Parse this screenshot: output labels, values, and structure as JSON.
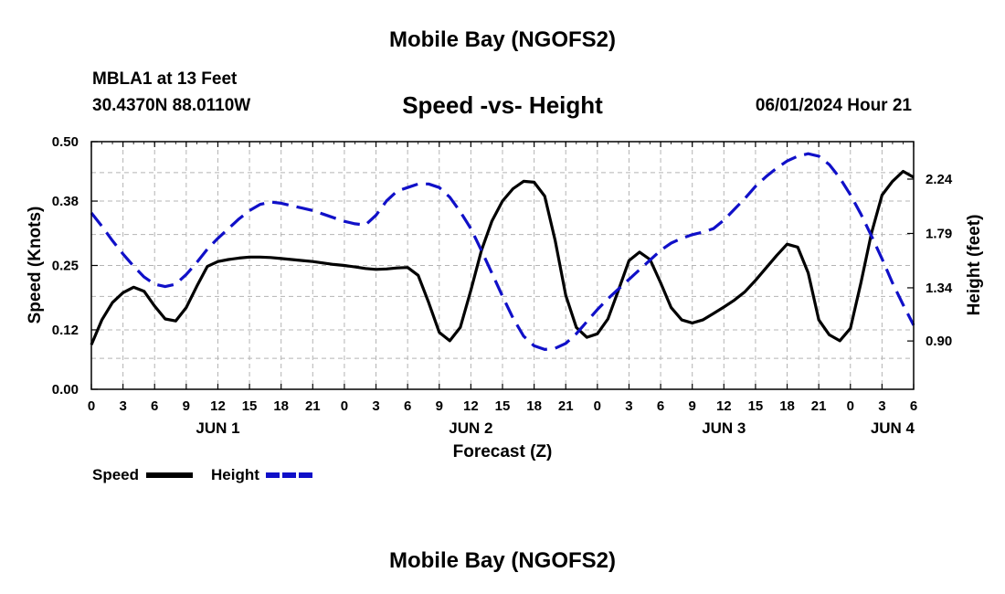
{
  "header": {
    "title": "Mobile Bay (NGOFS2)",
    "station": "MBLA1 at 13 Feet",
    "coords": "30.4370N  88.0110W",
    "subtitle": "Speed -vs- Height",
    "datestamp": "06/01/2024 Hour 21"
  },
  "footer": {
    "title": "Mobile Bay (NGOFS2)"
  },
  "chart_data": {
    "type": "line",
    "xlabel": "Forecast (Z)",
    "ylabel": "Speed (Knots)",
    "y2label": "Height (feet)",
    "xlim": [
      0,
      78
    ],
    "ylim": [
      0,
      0.5
    ],
    "y2lim": [
      0.5,
      2.55
    ],
    "grid": true,
    "legend": "bottom-left",
    "x_tick_values": [
      0,
      3,
      6,
      9,
      12,
      15,
      18,
      21,
      24,
      27,
      30,
      33,
      36,
      39,
      42,
      45,
      48,
      51,
      54,
      57,
      60,
      63,
      66,
      69,
      72,
      75,
      78
    ],
    "x_tick_labels": [
      "0",
      "3",
      "6",
      "9",
      "12",
      "15",
      "18",
      "21",
      "0",
      "3",
      "6",
      "9",
      "12",
      "15",
      "18",
      "21",
      "0",
      "3",
      "6",
      "9",
      "12",
      "15",
      "18",
      "21",
      "0",
      "3",
      "6"
    ],
    "day_labels": [
      {
        "x": 12,
        "label": "JUN 1"
      },
      {
        "x": 36,
        "label": "JUN 2"
      },
      {
        "x": 60,
        "label": "JUN 3"
      },
      {
        "x": 76,
        "label": "JUN 4"
      }
    ],
    "y_ticks": [
      0.0,
      0.12,
      0.25,
      0.38,
      0.5
    ],
    "y_tick_labels": [
      "0.00",
      "0.12",
      "0.25",
      "0.38",
      "0.50"
    ],
    "y2_ticks": [
      0.9,
      1.34,
      1.79,
      2.24
    ],
    "y2_tick_labels": [
      "0.90",
      "1.34",
      "1.79",
      "2.24"
    ],
    "series": [
      {
        "name": "Speed",
        "axis": "left",
        "color": "#000000",
        "style": "solid",
        "x": [
          0,
          1,
          2,
          3,
          4,
          5,
          6,
          7,
          8,
          9,
          10,
          11,
          12,
          13,
          14,
          15,
          16,
          17,
          18,
          19,
          20,
          21,
          22,
          23,
          24,
          25,
          26,
          27,
          28,
          29,
          30,
          31,
          32,
          33,
          34,
          35,
          36,
          37,
          38,
          39,
          40,
          41,
          42,
          43,
          44,
          45,
          46,
          47,
          48,
          49,
          50,
          51,
          52,
          53,
          54,
          55,
          56,
          57,
          58,
          59,
          60,
          61,
          62,
          63,
          64,
          65,
          66,
          67,
          68,
          69,
          70,
          71,
          72,
          73,
          74,
          75,
          76,
          77,
          78
        ],
        "values": [
          0.09,
          0.14,
          0.175,
          0.195,
          0.206,
          0.198,
          0.168,
          0.142,
          0.138,
          0.165,
          0.208,
          0.248,
          0.258,
          0.262,
          0.265,
          0.267,
          0.267,
          0.266,
          0.264,
          0.262,
          0.26,
          0.258,
          0.255,
          0.252,
          0.25,
          0.247,
          0.244,
          0.242,
          0.243,
          0.245,
          0.246,
          0.23,
          0.175,
          0.115,
          0.098,
          0.125,
          0.2,
          0.28,
          0.34,
          0.38,
          0.405,
          0.42,
          0.418,
          0.39,
          0.3,
          0.19,
          0.125,
          0.105,
          0.112,
          0.142,
          0.2,
          0.26,
          0.277,
          0.262,
          0.215,
          0.165,
          0.14,
          0.134,
          0.14,
          0.153,
          0.166,
          0.18,
          0.197,
          0.22,
          0.245,
          0.27,
          0.293,
          0.287,
          0.235,
          0.14,
          0.11,
          0.098,
          0.123,
          0.215,
          0.315,
          0.392,
          0.42,
          0.44,
          0.428
        ]
      },
      {
        "name": "Height",
        "axis": "right",
        "color": "#1010c8",
        "style": "dashed",
        "x": [
          0,
          1,
          2,
          3,
          4,
          5,
          6,
          7,
          8,
          9,
          10,
          11,
          12,
          13,
          14,
          15,
          16,
          17,
          18,
          19,
          20,
          21,
          22,
          23,
          24,
          25,
          26,
          27,
          28,
          29,
          30,
          31,
          32,
          33,
          34,
          35,
          36,
          37,
          38,
          39,
          40,
          41,
          42,
          43,
          44,
          45,
          46,
          47,
          48,
          49,
          50,
          51,
          52,
          53,
          54,
          55,
          56,
          57,
          58,
          59,
          60,
          61,
          62,
          63,
          64,
          65,
          66,
          67,
          68,
          69,
          70,
          71,
          72,
          73,
          74,
          75,
          76,
          77,
          78
        ],
        "values": [
          1.96,
          1.85,
          1.73,
          1.62,
          1.52,
          1.43,
          1.37,
          1.35,
          1.37,
          1.45,
          1.55,
          1.66,
          1.75,
          1.83,
          1.91,
          1.98,
          2.03,
          2.05,
          2.04,
          2.02,
          2.0,
          1.98,
          1.95,
          1.92,
          1.89,
          1.87,
          1.86,
          1.94,
          2.06,
          2.14,
          2.17,
          2.2,
          2.2,
          2.17,
          2.09,
          1.97,
          1.83,
          1.65,
          1.46,
          1.27,
          1.09,
          0.94,
          0.86,
          0.83,
          0.84,
          0.88,
          0.96,
          1.06,
          1.16,
          1.25,
          1.33,
          1.41,
          1.49,
          1.57,
          1.65,
          1.71,
          1.75,
          1.78,
          1.8,
          1.83,
          1.9,
          1.99,
          2.08,
          2.18,
          2.26,
          2.33,
          2.39,
          2.43,
          2.45,
          2.43,
          2.36,
          2.25,
          2.11,
          1.95,
          1.77,
          1.58,
          1.38,
          1.2,
          1.03
        ]
      }
    ]
  }
}
